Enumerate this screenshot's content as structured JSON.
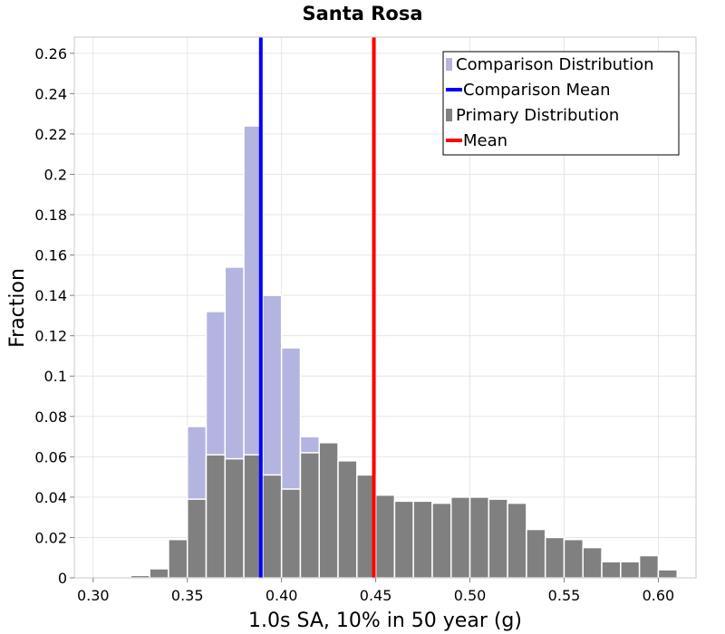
{
  "chart_data": {
    "type": "bar",
    "title": "Santa Rosa",
    "xlabel": "1.0s SA, 10% in 50 year (g)",
    "ylabel": "Fraction",
    "xlim": [
      0.29,
      0.62
    ],
    "ylim": [
      0,
      0.268
    ],
    "bin_width": 0.01,
    "x_ticks": [
      "0.30",
      "0.35",
      "0.40",
      "0.45",
      "0.50",
      "0.55",
      "0.60"
    ],
    "y_ticks": [
      "0",
      "0.02",
      "0.04",
      "0.06",
      "0.08",
      "0.1",
      "0.12",
      "0.14",
      "0.16",
      "0.18",
      "0.2",
      "0.22",
      "0.24",
      "0.26"
    ],
    "grid": true,
    "legend_position": "top-right",
    "series": [
      {
        "name": "Comparison Distribution",
        "color": "#b4b4e0",
        "x": [
          0.355,
          0.365,
          0.375,
          0.385,
          0.395,
          0.405,
          0.415
        ],
        "values": [
          0.075,
          0.132,
          0.154,
          0.224,
          0.14,
          0.114,
          0.07
        ]
      },
      {
        "name": "Primary Distribution",
        "color": "#808080",
        "x": [
          0.305,
          0.315,
          0.325,
          0.335,
          0.345,
          0.355,
          0.365,
          0.375,
          0.385,
          0.395,
          0.405,
          0.415,
          0.425,
          0.435,
          0.445,
          0.455,
          0.465,
          0.475,
          0.485,
          0.495,
          0.505,
          0.515,
          0.525,
          0.535,
          0.545,
          0.555,
          0.565,
          0.575,
          0.585,
          0.595,
          0.605
        ],
        "values": [
          0.0002,
          0.0005,
          0.0012,
          0.0045,
          0.019,
          0.039,
          0.061,
          0.059,
          0.061,
          0.051,
          0.044,
          0.062,
          0.067,
          0.058,
          0.051,
          0.041,
          0.038,
          0.038,
          0.037,
          0.04,
          0.04,
          0.039,
          0.037,
          0.024,
          0.02,
          0.019,
          0.015,
          0.008,
          0.008,
          0.011,
          0.004
        ]
      }
    ],
    "lines": [
      {
        "name": "Comparison Mean",
        "color": "#0000ff",
        "x": 0.389
      },
      {
        "name": "Mean",
        "color": "#ff0000",
        "x": 0.449
      }
    ],
    "legend": [
      {
        "label": "Comparison Distribution",
        "kind": "bar",
        "color": "#b4b4e0"
      },
      {
        "label": "Comparison Mean",
        "kind": "line",
        "color": "#0000ff"
      },
      {
        "label": "Primary Distribution",
        "kind": "bar",
        "color": "#808080"
      },
      {
        "label": "Mean",
        "kind": "line",
        "color": "#ff0000"
      }
    ]
  }
}
